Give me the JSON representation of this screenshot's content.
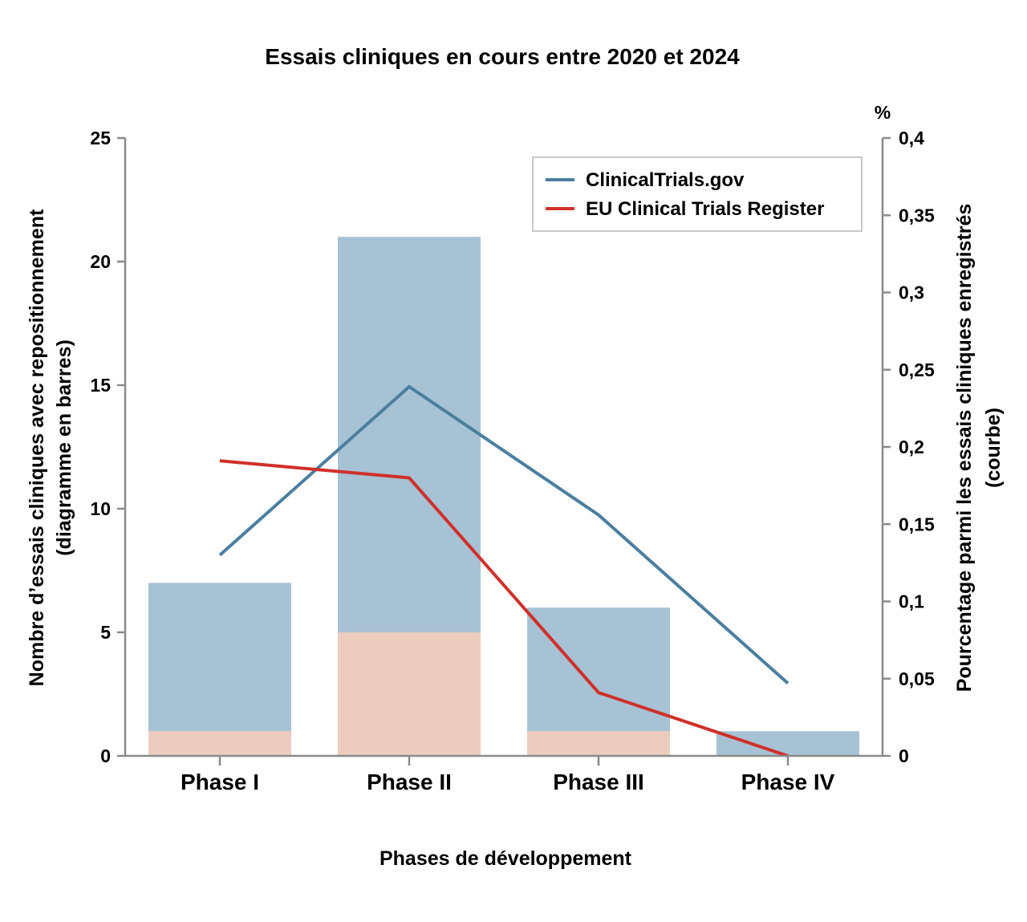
{
  "chart_data": {
    "type": "bar",
    "title": "Essais cliniques en cours entre 2020 et 2024",
    "xlabel": "Phases de développement",
    "ylabel_lines": [
      "Nombre d’essais cliniques avec repositionnement",
      "(diagramme en barres)"
    ],
    "y2label_lines": [
      "Pourcentage parmi les essais cliniques enregistrés",
      "(courbe)"
    ],
    "y2_unit": "%",
    "categories": [
      "Phase I",
      "Phase II",
      "Phase III",
      "Phase IV"
    ],
    "ylim": [
      0,
      25
    ],
    "yticks": [
      "0",
      "5",
      "10",
      "15",
      "20",
      "25"
    ],
    "y2lim": [
      0,
      0.4
    ],
    "y2ticks": [
      "0",
      "0,05",
      "0,1",
      "0,15",
      "0,2",
      "0,25",
      "0,3",
      "0,35",
      "0,4"
    ],
    "bar_series": [
      {
        "values": [
          1,
          5,
          1,
          0
        ],
        "color": "#ecccbe"
      },
      {
        "values": [
          7,
          21,
          6,
          1
        ],
        "color": "#a7c2d4"
      }
    ],
    "line_series": [
      {
        "name": "ClinicalTrials.gov",
        "values": [
          0.13,
          0.239,
          0.156,
          0.047
        ],
        "color": "#4a7fa0"
      },
      {
        "name": "EU Clinical Trials Register",
        "values": [
          0.191,
          0.18,
          0.041,
          0.0
        ],
        "color": "#d0302a"
      }
    ],
    "legend_position": "top-right",
    "grid": false
  }
}
